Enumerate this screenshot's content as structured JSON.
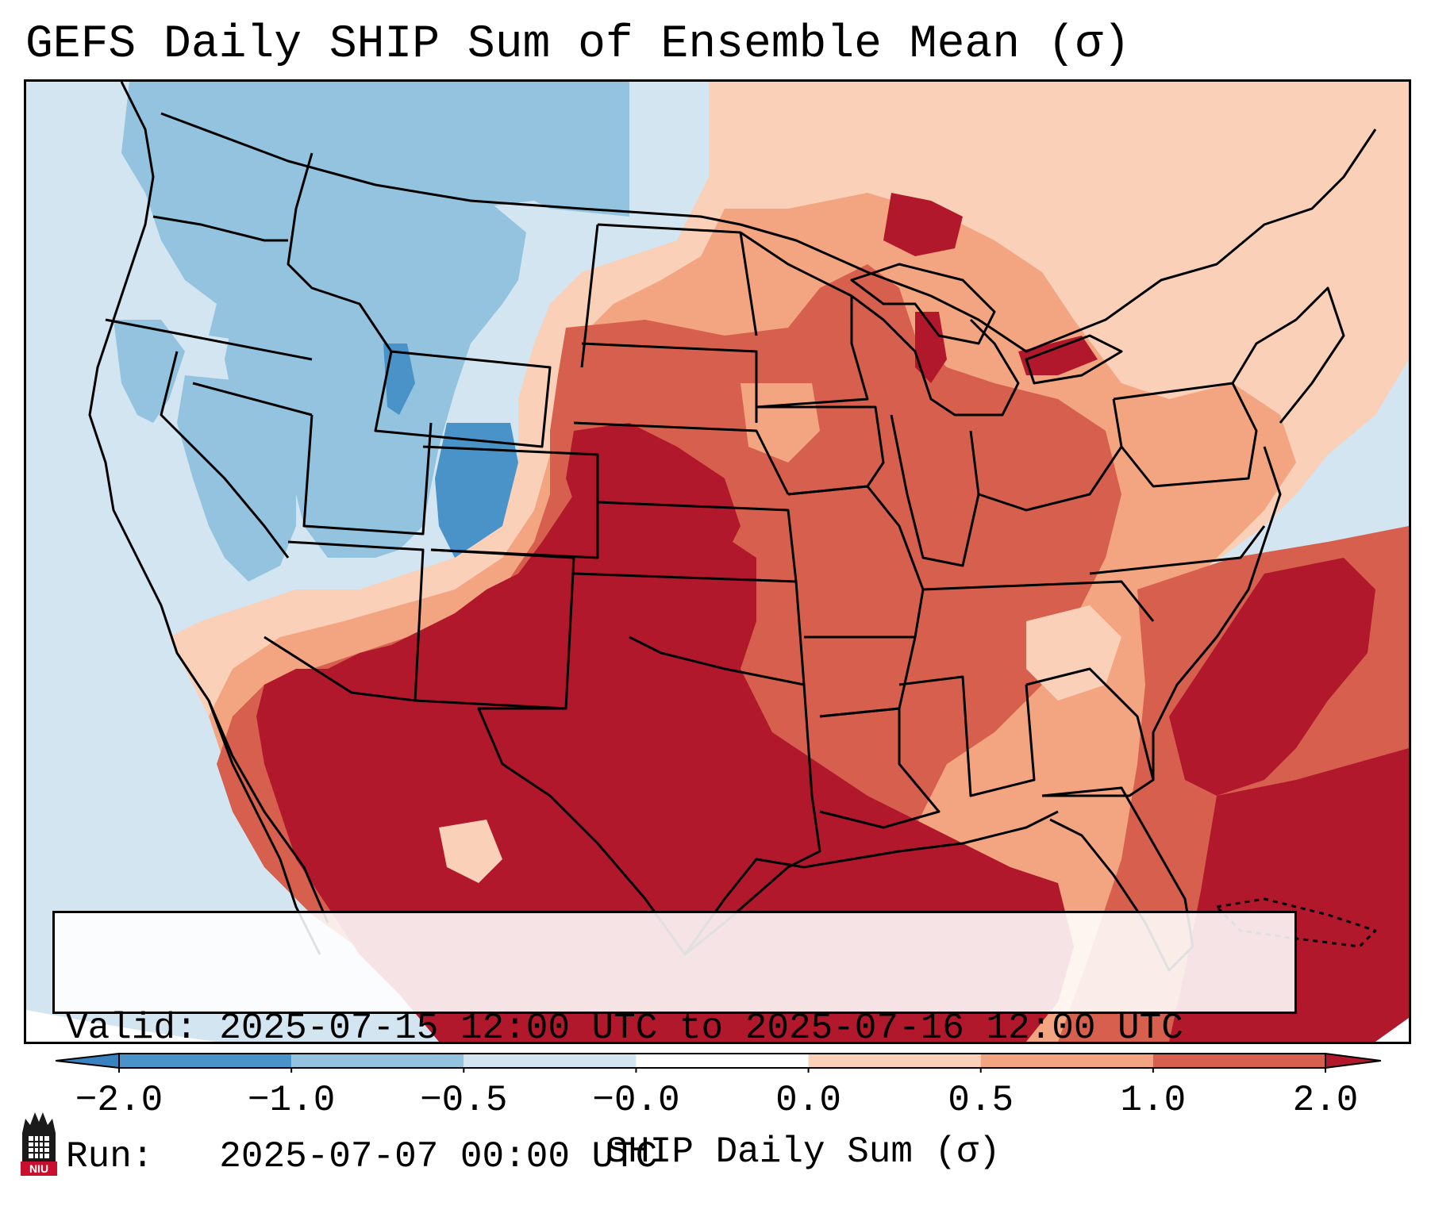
{
  "title": "GEFS Daily SHIP Sum of Ensemble Mean (σ)",
  "info": {
    "valid_label": "Valid:",
    "valid_value": "2025-07-15 12:00 UTC to 2025-07-16 12:00 UTC",
    "run_label": "Run:",
    "run_value": "2025-07-07 00:00 UTC"
  },
  "colorbar": {
    "label": "SHIP Daily Sum (σ)",
    "ticks": [
      "−2.0",
      "−1.0",
      "−0.5",
      "−0.0",
      "0.0",
      "0.5",
      "1.0",
      "2.0"
    ],
    "bins": [
      {
        "range": "below -2.0",
        "color": "#3a82bf"
      },
      {
        "range": "-2.0 to -1.0",
        "color": "#4a93c8"
      },
      {
        "range": "-1.0 to -0.5",
        "color": "#93c3df"
      },
      {
        "range": "-0.5 to -0.0",
        "color": "#d2e5f0"
      },
      {
        "range": "-0.0 to 0.0",
        "color": "#ffffff"
      },
      {
        "range": "0.0 to 0.5",
        "color": "#fbd0b9"
      },
      {
        "range": "0.5 to 1.0",
        "color": "#f3a582"
      },
      {
        "range": "1.0 to 2.0",
        "color": "#d6604d"
      },
      {
        "range": "above 2.0",
        "color": "#b2182b"
      }
    ]
  },
  "logo": {
    "text": "NIU",
    "color": "#c8102e"
  }
}
